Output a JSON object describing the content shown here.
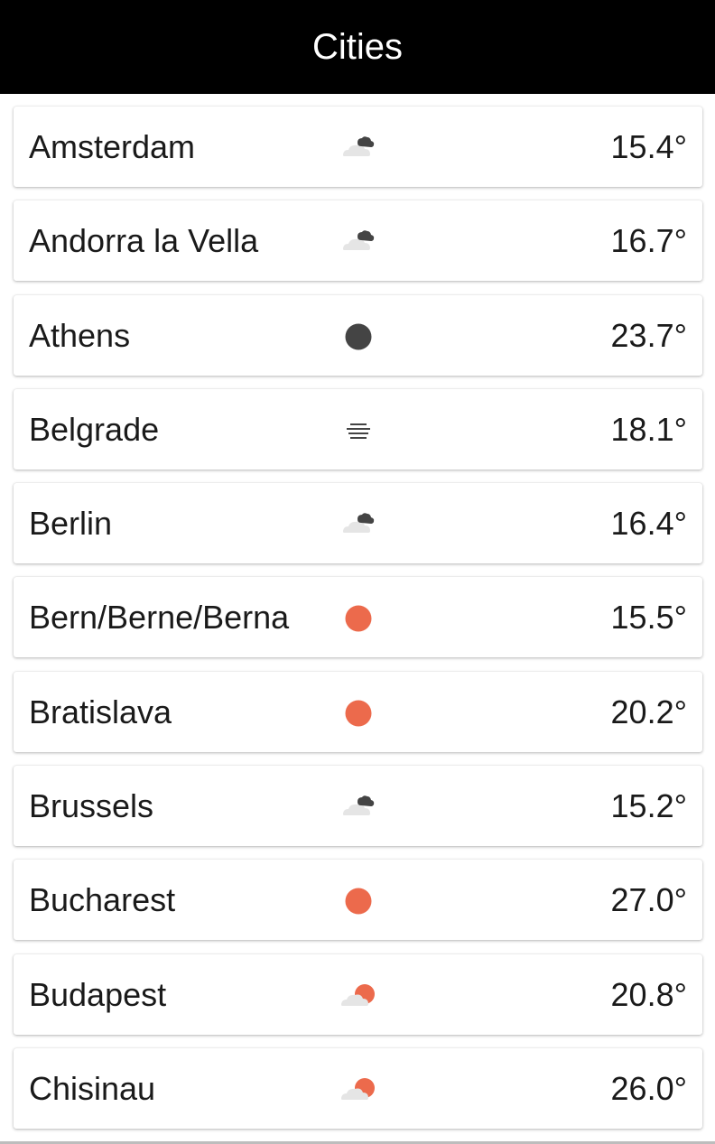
{
  "app_bar": {
    "title": "Cities"
  },
  "colors": {
    "app_bar_bg": "#000000",
    "sun": "#ec6a4c",
    "night": "#444444",
    "cloud_light": "#e5e5e5",
    "cloud_dark": "#444444"
  },
  "cities": [
    {
      "name": "Amsterdam",
      "temperature": "15.4°",
      "icon": "cloudy-icon"
    },
    {
      "name": "Andorra la Vella",
      "temperature": "16.7°",
      "icon": "cloudy-icon"
    },
    {
      "name": "Athens",
      "temperature": "23.7°",
      "icon": "clear-night-icon"
    },
    {
      "name": "Belgrade",
      "temperature": "18.1°",
      "icon": "fog-icon"
    },
    {
      "name": "Berlin",
      "temperature": "16.4°",
      "icon": "cloudy-icon"
    },
    {
      "name": "Bern/Berne/Berna",
      "temperature": "15.5°",
      "icon": "sunny-icon"
    },
    {
      "name": "Bratislava",
      "temperature": "20.2°",
      "icon": "sunny-icon"
    },
    {
      "name": "Brussels",
      "temperature": "15.2°",
      "icon": "cloudy-icon"
    },
    {
      "name": "Bucharest",
      "temperature": "27.0°",
      "icon": "sunny-icon"
    },
    {
      "name": "Budapest",
      "temperature": "20.8°",
      "icon": "partly-cloudy-icon"
    },
    {
      "name": "Chisinau",
      "temperature": "26.0°",
      "icon": "partly-cloudy-icon"
    }
  ]
}
